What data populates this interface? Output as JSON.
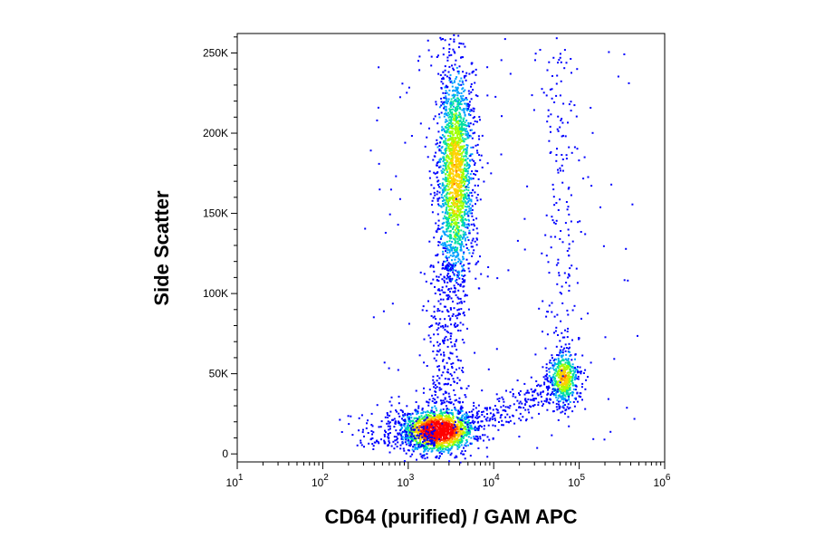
{
  "chart_data": {
    "type": "scatter",
    "style": "density-pseudocolor",
    "xlabel": "CD64 (purified) / GAM APC",
    "ylabel": "Side Scatter",
    "x_scale": "log",
    "xlim": [
      10,
      1000000
    ],
    "ylim": [
      -5000,
      262144
    ],
    "x_ticks": [
      {
        "value": 10,
        "base": "10",
        "exp": "1"
      },
      {
        "value": 100,
        "base": "10",
        "exp": "2"
      },
      {
        "value": 1000,
        "base": "10",
        "exp": "3"
      },
      {
        "value": 10000,
        "base": "10",
        "exp": "4"
      },
      {
        "value": 100000,
        "base": "10",
        "exp": "5"
      },
      {
        "value": 1000000,
        "base": "10",
        "exp": "6"
      }
    ],
    "y_ticks": [
      {
        "value": 0,
        "label": "0"
      },
      {
        "value": 50000,
        "label": "50K"
      },
      {
        "value": 100000,
        "label": "100K"
      },
      {
        "value": 150000,
        "label": "150K"
      },
      {
        "value": 200000,
        "label": "200K"
      },
      {
        "value": 250000,
        "label": "250K"
      }
    ],
    "populations": [
      {
        "description": "lymphocytes",
        "x_center": 2200,
        "y_center": 15000,
        "density": "highest"
      },
      {
        "description": "monocytes",
        "x_center": 65000,
        "y_center": 48000,
        "density": "medium"
      },
      {
        "description": "granulocytes",
        "x_center": 3500,
        "y_center": 175000,
        "density": "high"
      }
    ],
    "color_scale": [
      "#0000ff",
      "#00a0ff",
      "#00e0a0",
      "#a0ff00",
      "#ffd000",
      "#ff6000",
      "#ff0000"
    ],
    "grid": false,
    "legend": "none"
  }
}
